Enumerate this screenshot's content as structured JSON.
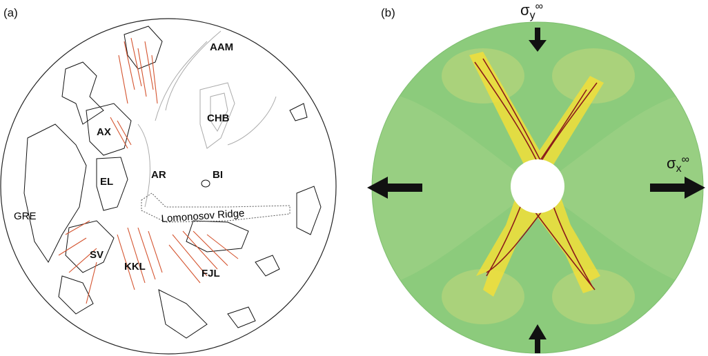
{
  "panel_a": {
    "label": "(a)",
    "regions": [
      "AAM",
      "CHB",
      "AX",
      "AR",
      "BI",
      "EL",
      "GRE",
      "Lomonosov Ridge",
      "SV",
      "KKL",
      "FJL"
    ]
  },
  "panel_b": {
    "label": "(b)",
    "sigma_y": {
      "symbol": "σ",
      "sub": "y",
      "sup": "∞"
    },
    "sigma_x": {
      "symbol": "σ",
      "sub": "x",
      "sup": "∞"
    }
  }
}
